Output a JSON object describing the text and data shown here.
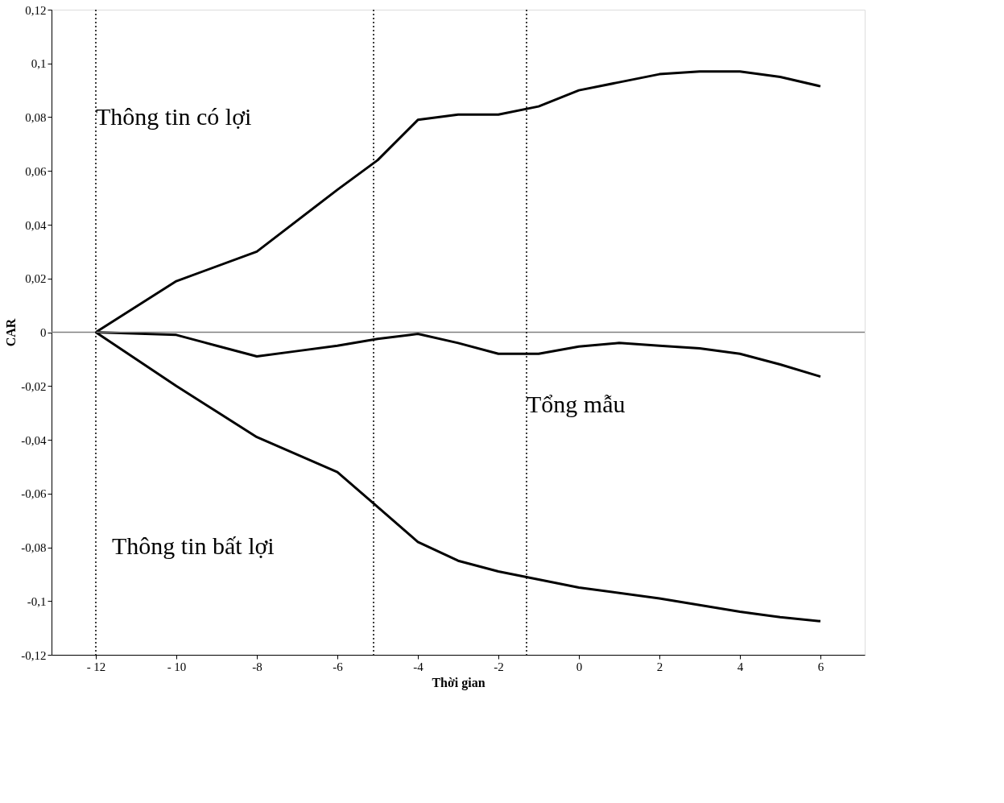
{
  "chart_data": {
    "type": "line",
    "xlabel": "Thời gian",
    "ylabel": "CAR",
    "xlim": [
      -13.1,
      7.1
    ],
    "ylim": [
      -0.12,
      0.12
    ],
    "xticks": [
      {
        "value": -12,
        "label": "- 12"
      },
      {
        "value": -10,
        "label": "- 10"
      },
      -8,
      -6,
      -4,
      -2,
      0,
      2,
      4,
      6
    ],
    "yticks": [
      {
        "value": -0.12,
        "label": "-0,12"
      },
      {
        "value": -0.1,
        "label": "-0,1"
      },
      {
        "value": -0.08,
        "label": "-0,08"
      },
      {
        "value": -0.06,
        "label": "-0,06"
      },
      {
        "value": -0.04,
        "label": "-0,04"
      },
      {
        "value": -0.02,
        "label": "-0,02"
      },
      0,
      {
        "value": 0.02,
        "label": "0,02"
      },
      {
        "value": 0.04,
        "label": "0,04"
      },
      {
        "value": 0.06,
        "label": "0,06"
      },
      {
        "value": 0.08,
        "label": "0,08"
      },
      {
        "value": 0.1,
        "label": "0,1"
      },
      {
        "value": 0.12,
        "label": "0,12"
      }
    ],
    "grid": false,
    "marker": "none",
    "line_style": "solid",
    "series": [
      {
        "color": "#000000",
        "x": [
          -12,
          -10,
          -8,
          -6,
          -5,
          -4,
          -3,
          -2,
          -1,
          0,
          1,
          2,
          3,
          4,
          5,
          6
        ],
        "values": [
          0,
          0.019,
          0.03,
          0.053,
          0.064,
          0.079,
          0.081,
          0.081,
          0.084,
          0.09,
          0.093,
          0.096,
          0.097,
          0.097,
          0.095,
          0.0915
        ]
      },
      {
        "color": "#000000",
        "x": [
          -12,
          -10,
          -9,
          -8,
          -7,
          -6,
          -5,
          -4,
          -3,
          -2,
          -1,
          0,
          1,
          2,
          3,
          4,
          5,
          6
        ],
        "values": [
          0,
          -0.001,
          -0.005,
          -0.009,
          -0.007,
          -0.005,
          -0.0025,
          -0.0006,
          -0.004,
          -0.008,
          -0.008,
          -0.0053,
          -0.004,
          -0.005,
          -0.006,
          -0.008,
          -0.012,
          -0.0165
        ]
      },
      {
        "color": "#000000",
        "x": [
          -12,
          -10,
          -8,
          -6,
          -5,
          -4,
          -3,
          -2,
          -1,
          0,
          2,
          4,
          5,
          6
        ],
        "values": [
          0,
          -0.02,
          -0.039,
          -0.052,
          -0.065,
          -0.078,
          -0.085,
          -0.089,
          -0.092,
          -0.095,
          -0.099,
          -0.104,
          -0.106,
          -0.1075
        ]
      }
    ],
    "ref_lines": [
      {
        "axis": "y",
        "value": 0,
        "color": "#808080",
        "line_style": "solid"
      },
      {
        "axis": "x",
        "value": -12,
        "color": "#000000",
        "line_style": "dotted"
      },
      {
        "axis": "x",
        "value": -5.1,
        "color": "#000000",
        "line_style": "dotted"
      },
      {
        "axis": "x",
        "value": -1.3,
        "color": "#000000",
        "line_style": "dotted"
      }
    ],
    "annotations": [
      {
        "text": "Thông tin có lợi",
        "x": -12,
        "y": 0.08
      },
      {
        "text": "Tổng mẫu",
        "x": -1.3,
        "y": -0.027
      },
      "Thông tin bất lợi"
    ]
  }
}
